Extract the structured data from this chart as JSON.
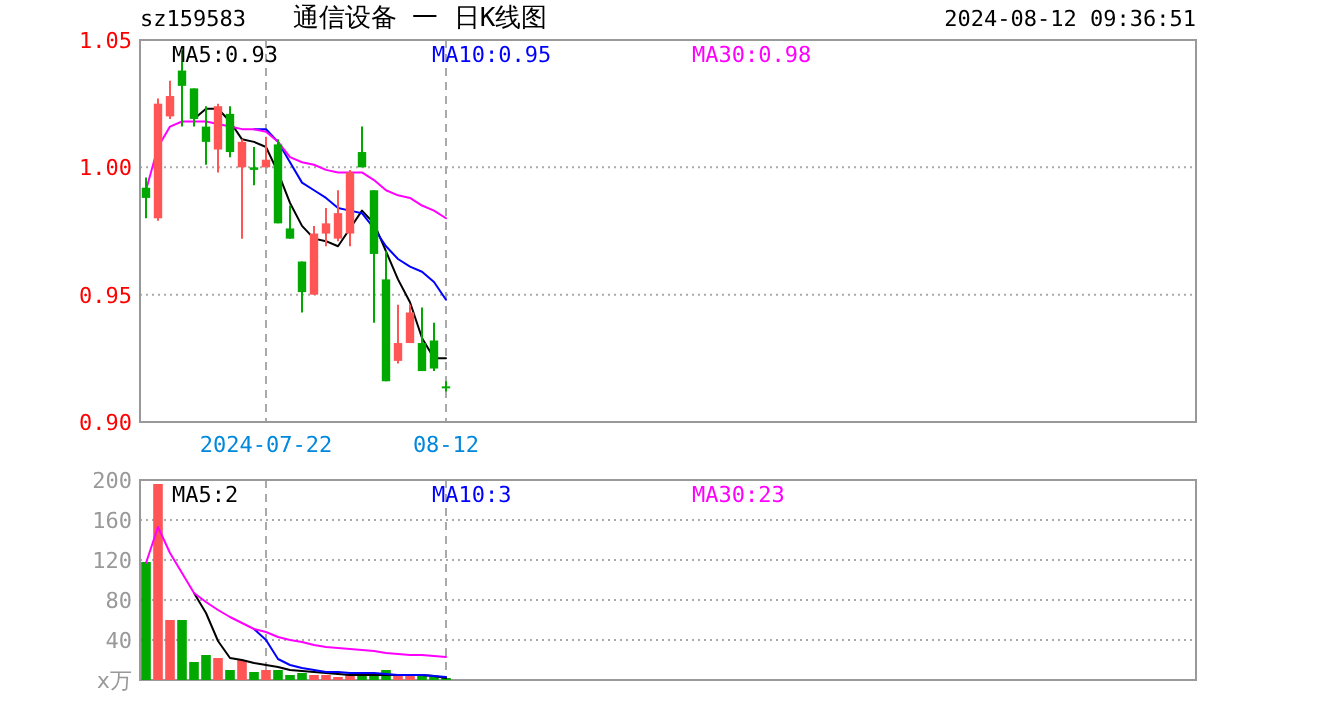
{
  "chart_data": [
    {
      "type": "candlestick",
      "title": "通信设备 一 日K线图",
      "subtitle": "sz159583",
      "annotations": [
        "2024-08-12 09:36:51"
      ],
      "categories": [
        null,
        null,
        null,
        null,
        null,
        null,
        null,
        null,
        null,
        null,
        "2024-07-22",
        null,
        null,
        null,
        null,
        null,
        null,
        null,
        null,
        null,
        null,
        null,
        null,
        null,
        null,
        "08-12",
        null,
        null,
        null,
        null,
        null,
        null,
        null,
        null,
        null,
        null,
        null,
        null,
        null,
        null,
        null,
        null,
        null,
        null,
        null,
        null,
        null,
        null,
        null,
        null,
        null,
        null,
        null,
        null,
        null,
        null,
        null,
        null,
        null,
        null,
        null,
        null,
        null,
        null,
        null,
        null,
        null,
        null,
        null,
        null,
        null,
        null,
        null,
        null,
        null,
        null,
        null,
        null,
        null,
        null,
        null,
        null,
        null,
        null,
        null,
        null,
        null,
        null
      ],
      "ohlc": [
        [
          0.992,
          0.996,
          0.98,
          0.988
        ],
        [
          0.98,
          1.027,
          0.979,
          1.025
        ],
        [
          1.02,
          1.034,
          1.019,
          1.028
        ],
        [
          1.038,
          1.046,
          1.016,
          1.032
        ],
        [
          1.031,
          1.031,
          1.016,
          1.019
        ],
        [
          1.016,
          1.024,
          1.001,
          1.01
        ],
        [
          1.007,
          1.025,
          0.998,
          1.024
        ],
        [
          1.021,
          1.024,
          1.004,
          1.006
        ],
        [
          1.0,
          1.011,
          0.972,
          1.01
        ],
        [
          1.0,
          1.008,
          0.993,
          0.999
        ],
        [
          1.0,
          1.012,
          1.0,
          1.003
        ],
        [
          1.009,
          1.011,
          0.978,
          0.978
        ],
        [
          0.976,
          0.985,
          0.972,
          0.972
        ],
        [
          0.963,
          0.963,
          0.943,
          0.951
        ],
        [
          0.95,
          0.977,
          0.95,
          0.974
        ],
        [
          0.974,
          0.984,
          0.969,
          0.978
        ],
        [
          0.972,
          0.991,
          0.971,
          0.982
        ],
        [
          0.974,
          0.999,
          0.969,
          0.998
        ],
        [
          1.006,
          1.016,
          1.0,
          1.0
        ],
        [
          0.991,
          0.991,
          0.939,
          0.966
        ],
        [
          0.956,
          0.967,
          0.916,
          0.916
        ],
        [
          0.924,
          0.946,
          0.923,
          0.931
        ],
        [
          0.931,
          0.946,
          0.931,
          0.943
        ],
        [
          0.931,
          0.945,
          0.92,
          0.92
        ],
        [
          0.932,
          0.939,
          0.92,
          0.921
        ],
        [
          0.914,
          0.916,
          0.912,
          0.914
        ],
        null,
        null,
        null,
        null,
        null,
        null,
        null,
        null,
        null,
        null,
        null,
        null,
        null,
        null,
        null,
        null,
        null,
        null,
        null,
        null,
        null,
        null,
        null,
        null,
        null,
        null,
        null,
        null,
        null,
        null,
        null,
        null,
        null,
        null,
        null,
        null,
        null,
        null,
        null,
        null,
        null,
        null,
        null,
        null,
        null,
        null,
        null,
        null,
        null,
        null,
        null,
        null,
        null,
        null,
        null,
        null,
        null,
        null,
        null,
        null,
        null,
        null
      ],
      "colors": [
        "#00a800",
        "#ff5555",
        "#ff5555",
        "#00a800",
        "#00a800",
        "#00a800",
        "#ff5555",
        "#00a800",
        "#ff5555",
        "#00a800",
        "#ff5555",
        "#00a800",
        "#00a800",
        "#00a800",
        "#ff5555",
        "#ff5555",
        "#ff5555",
        "#ff5555",
        "#00a800",
        "#00a800",
        "#00a800",
        "#ff5555",
        "#ff5555",
        "#00a800",
        "#00a800",
        "#00a800",
        null,
        null,
        null,
        null,
        null,
        null,
        null,
        null,
        null,
        null,
        null,
        null,
        null,
        null,
        null,
        null,
        null,
        null,
        null,
        null,
        null,
        null,
        null,
        null,
        null,
        null,
        null,
        null,
        null,
        null,
        null,
        null,
        null,
        null,
        null,
        null,
        null,
        null,
        null,
        null,
        null,
        null,
        null,
        null,
        null,
        null,
        null,
        null,
        null,
        null,
        null,
        null,
        null,
        null,
        null,
        null,
        null,
        null,
        null,
        null,
        null,
        null
      ],
      "series": [
        {
          "name": "MA5:0.93",
          "type": "line",
          "color": "#000000",
          "values": [
            null,
            null,
            null,
            null,
            1.019,
            1.023,
            1.023,
            1.018,
            1.011,
            1.01,
            1.008,
            0.998,
            0.986,
            0.977,
            0.972,
            0.971,
            0.969,
            0.976,
            0.983,
            0.978,
            0.967,
            0.956,
            0.947,
            0.933,
            0.925,
            0.925,
            null,
            null,
            null,
            null,
            null,
            null,
            null,
            null,
            null,
            null,
            null,
            null,
            null,
            null,
            null,
            null,
            null,
            null,
            null,
            null,
            null,
            null,
            null,
            null,
            null,
            null,
            null,
            null,
            null,
            null,
            null,
            null,
            null,
            null,
            null,
            null,
            null,
            null,
            null,
            null,
            null,
            null,
            null,
            null,
            null,
            null,
            null,
            null,
            null,
            null,
            null,
            null,
            null,
            null,
            null,
            null,
            null,
            null,
            null,
            null,
            null,
            null
          ]
        },
        {
          "name": "MA10:0.95",
          "type": "line",
          "color": "#0000ff",
          "values": [
            null,
            null,
            null,
            null,
            null,
            null,
            null,
            null,
            null,
            1.015,
            1.015,
            1.01,
            1.002,
            0.994,
            0.991,
            0.988,
            0.984,
            0.983,
            0.982,
            0.976,
            0.969,
            0.964,
            0.961,
            0.959,
            0.955,
            0.948,
            null,
            null,
            null,
            null,
            null,
            null,
            null,
            null,
            null,
            null,
            null,
            null,
            null,
            null,
            null,
            null,
            null,
            null,
            null,
            null,
            null,
            null,
            null,
            null,
            null,
            null,
            null,
            null,
            null,
            null,
            null,
            null,
            null,
            null,
            null,
            null,
            null,
            null,
            null,
            null,
            null,
            null,
            null,
            null,
            null,
            null,
            null,
            null,
            null,
            null,
            null,
            null,
            null,
            null,
            null,
            null,
            null,
            null,
            null,
            null,
            null,
            null
          ]
        },
        {
          "name": "MA30:0.98",
          "type": "line",
          "color": "#ff00ff",
          "values": [
            0.991,
            1.008,
            1.016,
            1.018,
            1.018,
            1.018,
            1.017,
            1.016,
            1.015,
            1.015,
            1.014,
            1.01,
            1.004,
            1.002,
            1.001,
            0.999,
            0.998,
            0.998,
            0.998,
            0.995,
            0.991,
            0.989,
            0.988,
            0.985,
            0.983,
            0.98,
            null,
            null,
            null,
            null,
            null,
            null,
            null,
            null,
            null,
            null,
            null,
            null,
            null,
            null,
            null,
            null,
            null,
            null,
            null,
            null,
            null,
            null,
            null,
            null,
            null,
            null,
            null,
            null,
            null,
            null,
            null,
            null,
            null,
            null,
            null,
            null,
            null,
            null,
            null,
            null,
            null,
            null,
            null,
            null,
            null,
            null,
            null,
            null,
            null,
            null,
            null,
            null,
            null,
            null,
            null,
            null,
            null,
            null,
            null,
            null,
            null,
            null
          ]
        }
      ],
      "ylim": [
        0.9,
        1.05
      ],
      "yticks": [
        {
          "value": 0.9,
          "label": "0.90"
        },
        {
          "value": 0.95,
          "label": "0.95"
        },
        {
          "value": 1,
          "label": "1.00"
        },
        1.05
      ],
      "grid": "y",
      "legend": "top",
      "ref_lines": [
        {
          "axis": "x",
          "value": "2024-07-22",
          "line_style": "dashed",
          "color": "#aaaaaa"
        },
        {
          "axis": "x",
          "value": "08-12",
          "line_style": "dashed",
          "color": "#aaaaaa"
        }
      ]
    },
    {
      "type": "bar",
      "categories": [
        null,
        null,
        null,
        null,
        null,
        null,
        null,
        null,
        null,
        null,
        "2024-07-22",
        null,
        null,
        null,
        null,
        null,
        null,
        null,
        null,
        null,
        null,
        null,
        null,
        null,
        null,
        "08-12",
        null,
        null,
        null,
        null,
        null,
        null,
        null,
        null,
        null,
        null,
        null,
        null,
        null,
        null,
        null,
        null,
        null,
        null,
        null,
        null,
        null,
        null,
        null,
        null,
        null,
        null,
        null,
        null,
        null,
        null,
        null,
        null,
        null,
        null,
        null,
        null,
        null,
        null,
        null,
        null,
        null,
        null,
        null,
        null,
        null,
        null,
        null,
        null,
        null,
        null,
        null,
        null,
        null,
        null,
        null,
        null,
        null,
        null,
        null,
        null,
        null,
        null
      ],
      "tick_labels": "y",
      "series": [
        {
          "type": "bar",
          "values": [
            118,
            196,
            60,
            60,
            18,
            25,
            22,
            10,
            20,
            8,
            10,
            10,
            5,
            7,
            5,
            5,
            3,
            5,
            8,
            5,
            10,
            5,
            5,
            5,
            3,
            2,
            null,
            null,
            null,
            null,
            null,
            null,
            null,
            null,
            null,
            null,
            null,
            null,
            null,
            null,
            null,
            null,
            null,
            null,
            null,
            null,
            null,
            null,
            null,
            null,
            null,
            null,
            null,
            null,
            null,
            null,
            null,
            null,
            null,
            null,
            null,
            null,
            null,
            null,
            null,
            null,
            null,
            null,
            null,
            null,
            null,
            null,
            null,
            null,
            null,
            null,
            null,
            null,
            null,
            null,
            null,
            null,
            null,
            null,
            null,
            null,
            null,
            null
          ],
          "colors": [
            "#00a800",
            "#ff5555",
            "#ff5555",
            "#00a800",
            "#00a800",
            "#00a800",
            "#ff5555",
            "#00a800",
            "#ff5555",
            "#00a800",
            "#ff5555",
            "#00a800",
            "#00a800",
            "#00a800",
            "#ff5555",
            "#ff5555",
            "#ff5555",
            "#ff5555",
            "#00a800",
            "#00a800",
            "#00a800",
            "#ff5555",
            "#ff5555",
            "#00a800",
            "#00a800",
            "#00a800",
            null,
            null,
            null,
            null,
            null,
            null,
            null,
            null,
            null,
            null,
            null,
            null,
            null,
            null,
            null,
            null,
            null,
            null,
            null,
            null,
            null,
            null,
            null,
            null,
            null,
            null,
            null,
            null,
            null,
            null,
            null,
            null,
            null,
            null,
            null,
            null,
            null,
            null,
            null,
            null,
            null,
            null,
            null,
            null,
            null,
            null,
            null,
            null,
            null,
            null,
            null,
            null,
            null,
            null,
            null,
            null,
            null,
            null,
            null,
            null,
            null,
            null
          ]
        },
        {
          "name": "MA5:2",
          "type": "line",
          "color": "#000000",
          "values": [
            null,
            null,
            null,
            null,
            87,
            67,
            39,
            22,
            20,
            17,
            15,
            13,
            10,
            9,
            8,
            7,
            6,
            5,
            5,
            5,
            5,
            5,
            5,
            5,
            4,
            2,
            null,
            null,
            null,
            null,
            null,
            null,
            null,
            null,
            null,
            null,
            null,
            null,
            null,
            null,
            null,
            null,
            null,
            null,
            null,
            null,
            null,
            null,
            null,
            null,
            null,
            null,
            null,
            null,
            null,
            null,
            null,
            null,
            null,
            null,
            null,
            null,
            null,
            null,
            null,
            null,
            null,
            null,
            null,
            null,
            null,
            null,
            null,
            null,
            null,
            null,
            null,
            null,
            null,
            null,
            null,
            null,
            null,
            null,
            null,
            null,
            null,
            null
          ]
        },
        {
          "name": "MA10:3",
          "type": "line",
          "color": "#0000ff",
          "values": [
            null,
            null,
            null,
            null,
            null,
            null,
            null,
            null,
            null,
            51,
            40,
            21,
            15,
            12,
            10,
            8,
            8,
            7,
            7,
            7,
            6,
            5,
            5,
            5,
            4,
            3,
            null,
            null,
            null,
            null,
            null,
            null,
            null,
            null,
            null,
            null,
            null,
            null,
            null,
            null,
            null,
            null,
            null,
            null,
            null,
            null,
            null,
            null,
            null,
            null,
            null,
            null,
            null,
            null,
            null,
            null,
            null,
            null,
            null,
            null,
            null,
            null,
            null,
            null,
            null,
            null,
            null,
            null,
            null,
            null,
            null,
            null,
            null,
            null,
            null,
            null,
            null,
            null,
            null,
            null,
            null,
            null,
            null,
            null,
            null,
            null,
            null,
            null
          ]
        },
        {
          "name": "MA30:23",
          "type": "line",
          "color": "#ff00ff",
          "values": [
            117,
            153,
            127,
            107,
            87,
            78,
            70,
            63,
            57,
            51,
            48,
            43,
            40,
            38,
            35,
            33,
            32,
            31,
            30,
            29,
            27,
            26,
            25,
            25,
            24,
            23,
            null,
            null,
            null,
            null,
            null,
            null,
            null,
            null,
            null,
            null,
            null,
            null,
            null,
            null,
            null,
            null,
            null,
            null,
            null,
            null,
            null,
            null,
            null,
            null,
            null,
            null,
            null,
            null,
            null,
            null,
            null,
            null,
            null,
            null,
            null,
            null,
            null,
            null,
            null,
            null,
            null,
            null,
            null,
            null,
            null,
            null,
            null,
            null,
            null,
            null,
            null,
            null,
            null,
            null,
            null,
            null,
            null,
            null,
            null,
            null,
            null,
            null
          ]
        }
      ],
      "ylim": [
        0,
        200
      ],
      "yticks": [
        {
          "value": 0,
          "label": "x万"
        },
        40,
        80,
        120,
        160,
        200
      ],
      "grid": "y",
      "legend": "top",
      "ref_lines": [
        {
          "axis": "x",
          "value": "2024-07-22",
          "line_style": "dashed",
          "color": "#aaaaaa"
        },
        {
          "axis": "x",
          "value": "08-12",
          "line_style": "dashed",
          "color": "#aaaaaa"
        }
      ]
    }
  ]
}
